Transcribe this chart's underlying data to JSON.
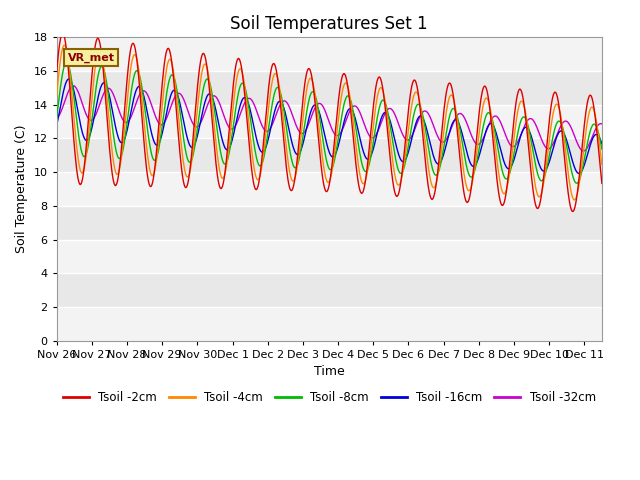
{
  "title": "Soil Temperatures Set 1",
  "xlabel": "Time",
  "ylabel": "Soil Temperature (C)",
  "ylim": [
    0,
    18
  ],
  "yticks": [
    0,
    2,
    4,
    6,
    8,
    10,
    12,
    14,
    16,
    18
  ],
  "x_tick_labels": [
    "Nov 26",
    "Nov 27",
    "Nov 28",
    "Nov 29",
    "Nov 30",
    "Dec 1",
    "Dec 2",
    "Dec 3",
    "Dec 4",
    "Dec 5",
    "Dec 6",
    "Dec 7",
    "Dec 8",
    "Dec 9",
    "Dec 10",
    "Dec 11"
  ],
  "series_colors": {
    "Tsoil -2cm": "#dd0000",
    "Tsoil -4cm": "#ff8800",
    "Tsoil -8cm": "#00bb00",
    "Tsoil -16cm": "#0000dd",
    "Tsoil -32cm": "#cc00cc"
  },
  "watermark": "VR_met",
  "plot_bg": "#e8e8e8",
  "grid_color": "#ffffff",
  "title_fontsize": 12,
  "axis_label_fontsize": 9,
  "tick_fontsize": 8
}
